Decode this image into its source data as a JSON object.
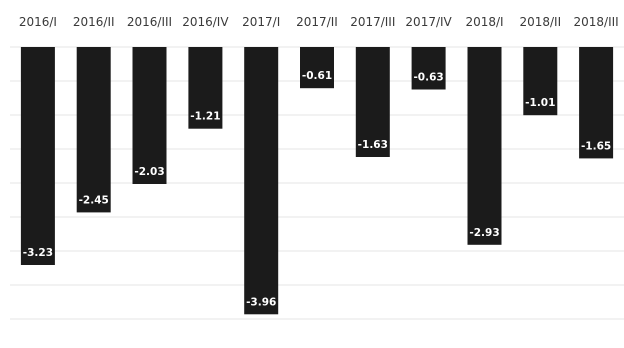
{
  "chart_data": {
    "type": "bar",
    "categories": [
      "2016/I",
      "2016/II",
      "2016/III",
      "2016/IV",
      "2017/I",
      "2017/II",
      "2017/III",
      "2017/IV",
      "2018/I",
      "2018/II",
      "2018/III"
    ],
    "values": [
      -3.23,
      -2.45,
      -2.03,
      -1.21,
      -3.96,
      -0.61,
      -1.63,
      -0.63,
      -2.93,
      -1.01,
      -1.65
    ],
    "value_labels": [
      "-3.23",
      "-2.45",
      "-2.03",
      "-1.21",
      "-3.96",
      "-0.61",
      "-1.63",
      "-0.63",
      "-2.93",
      "-1.01",
      "-1.65"
    ],
    "title": "",
    "xlabel": "",
    "ylabel": "",
    "ylim": [
      -4,
      0
    ],
    "category_axis_position": "top",
    "grid": true,
    "legend": "none",
    "bar_color": "#1b1b1b",
    "label_color": "#ffffff"
  }
}
